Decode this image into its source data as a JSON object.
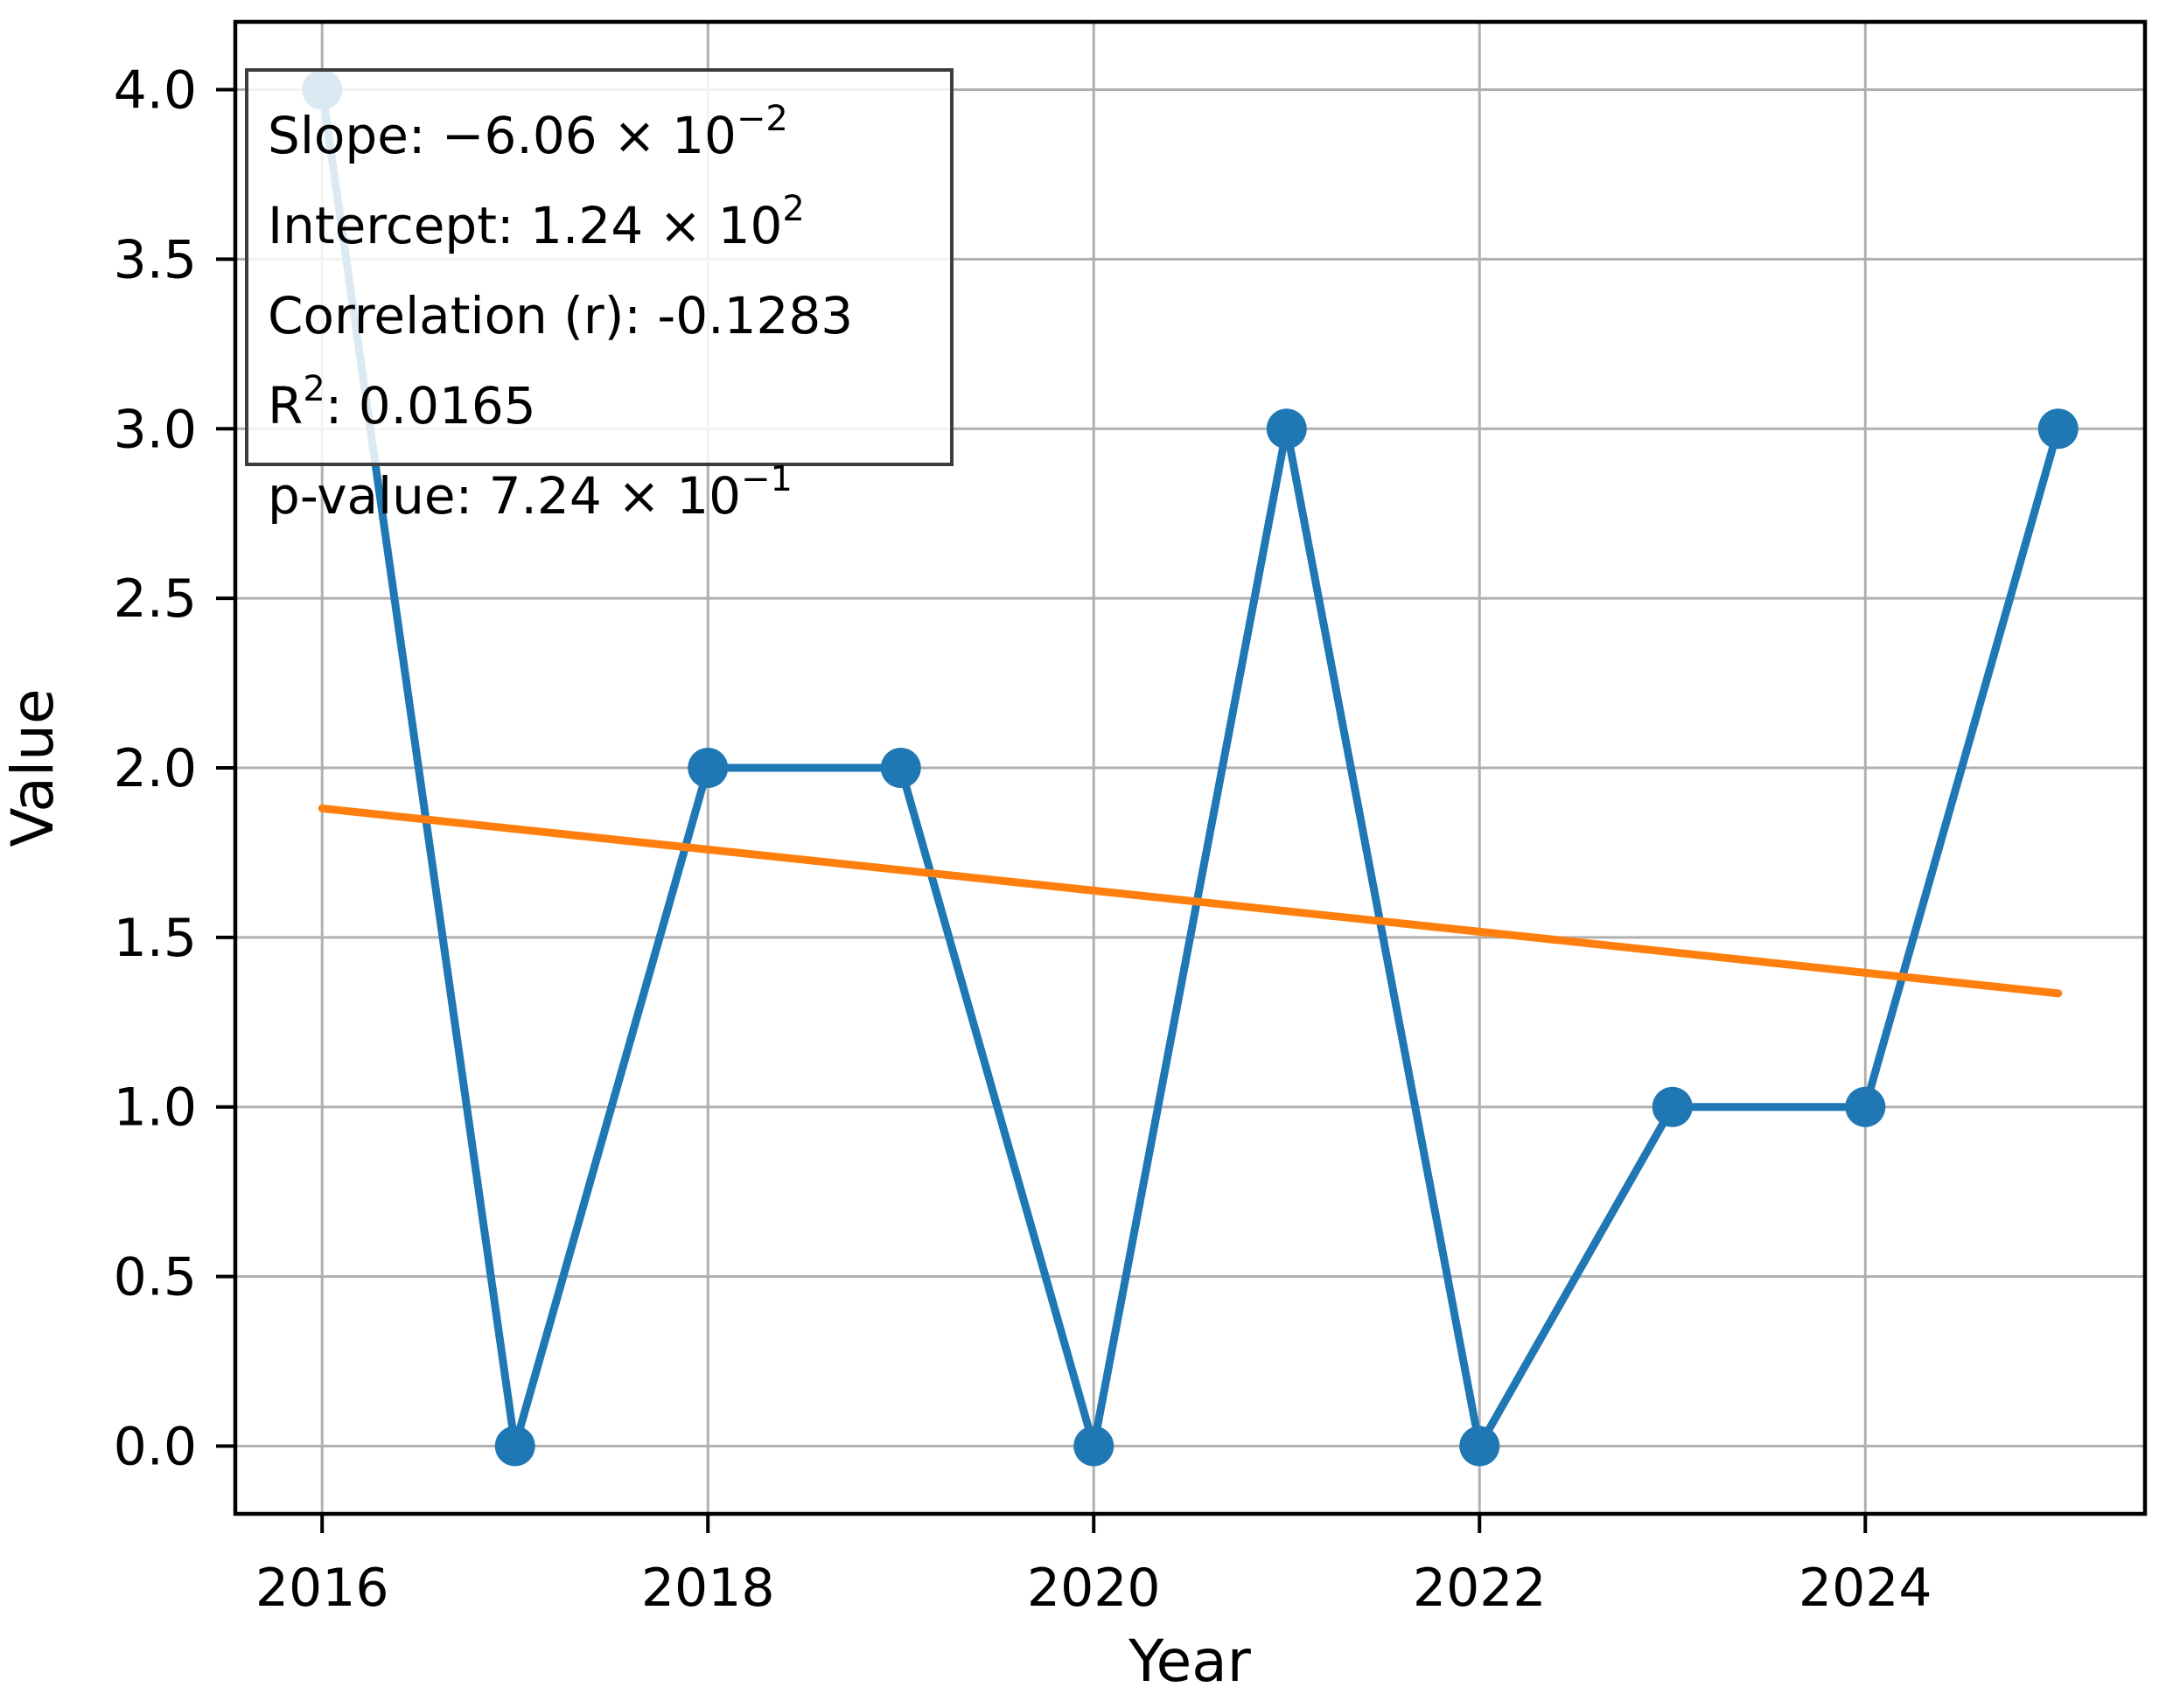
{
  "chart_data": {
    "type": "line",
    "title": "",
    "xlabel": "Year",
    "ylabel": "Value",
    "x": [
      2016,
      2017,
      2018,
      2019,
      2020,
      2021,
      2022,
      2023,
      2024,
      2025
    ],
    "series": [
      {
        "name": "Value",
        "color": "#1f77b4",
        "values": [
          4,
          0,
          2,
          2,
          0,
          3,
          0,
          1,
          1,
          3
        ]
      }
    ],
    "trend_line": {
      "color": "#ff7f0e",
      "slope": -0.0606,
      "intercept": 124.05,
      "x_start": 2016,
      "x_end": 2025
    },
    "xlim": [
      2015.55,
      2025.45
    ],
    "ylim": [
      -0.2,
      4.2
    ],
    "x_ticks": [
      2016,
      2018,
      2020,
      2022,
      2024
    ],
    "x_tick_labels": [
      "2016",
      "2018",
      "2020",
      "2022",
      "2024"
    ],
    "y_ticks": [
      0,
      0.5,
      1,
      1.5,
      2,
      2.5,
      3,
      3.5,
      4
    ],
    "y_tick_labels": [
      "0.0",
      "0.5",
      "1.0",
      "1.5",
      "2.0",
      "2.5",
      "3.0",
      "3.5",
      "4.0"
    ],
    "grid": true,
    "legend_position": "none",
    "grid_color": "#b0b0b0",
    "frame_color": "#000000"
  },
  "stats_box": {
    "lines": [
      {
        "pre": "Slope: −6.06 × 10",
        "sup": "−2",
        "post": ""
      },
      {
        "pre": "Intercept: 1.24 × 10",
        "sup": "2",
        "post": ""
      },
      {
        "pre": "Correlation (r): -0.1283",
        "sup": "",
        "post": ""
      },
      {
        "pre": "R",
        "sup": "2",
        "post": ": 0.0165"
      },
      {
        "pre": "p-value: 7.24 × 10",
        "sup": "−1",
        "post": ""
      }
    ]
  }
}
